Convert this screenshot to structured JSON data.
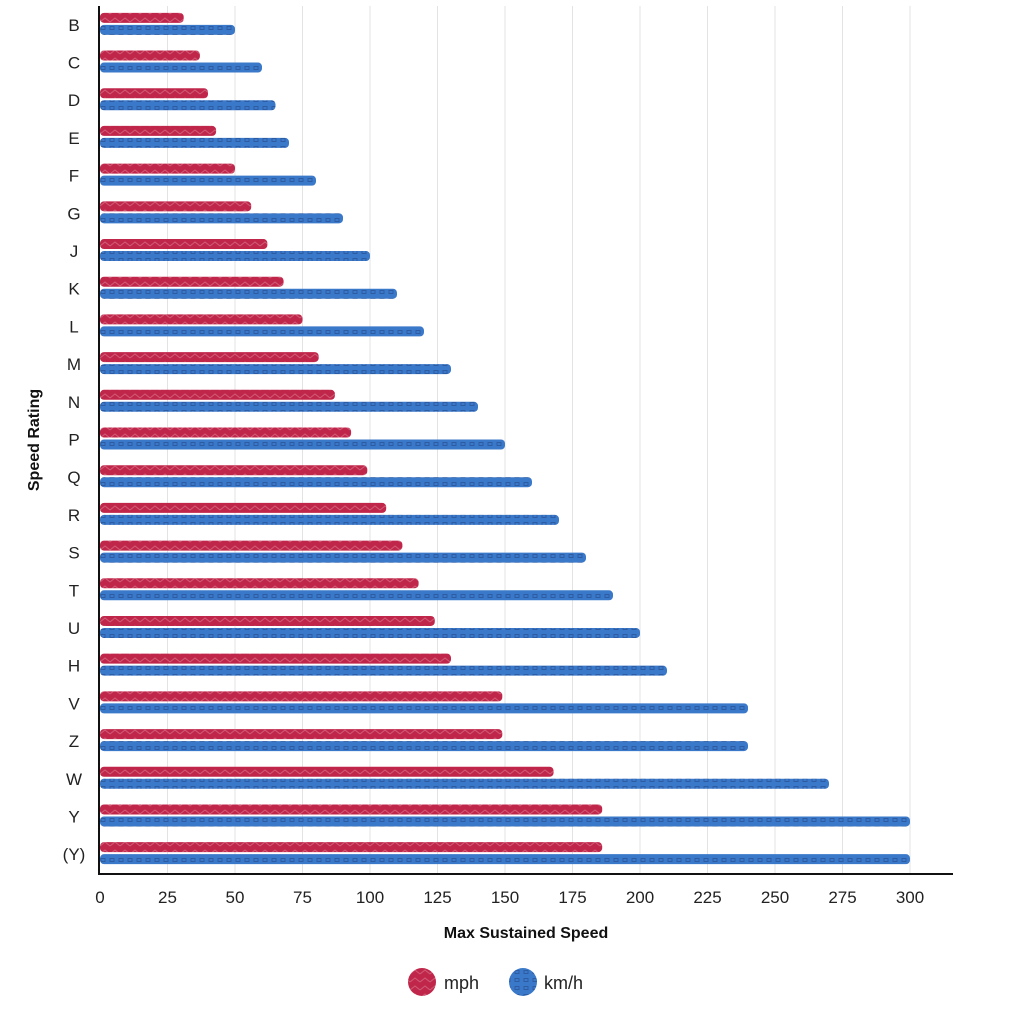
{
  "chart_data": {
    "type": "bar",
    "orientation": "horizontal",
    "title": "",
    "xlabel": "Max Sustained Speed",
    "ylabel": "Speed Rating",
    "xlim": [
      0,
      300
    ],
    "xticks": [
      0,
      25,
      50,
      75,
      100,
      125,
      150,
      175,
      200,
      225,
      250,
      275,
      300
    ],
    "grid": "vertical",
    "legend_position": "bottom",
    "categories": [
      "B",
      "C",
      "D",
      "E",
      "F",
      "G",
      "J",
      "K",
      "L",
      "M",
      "N",
      "P",
      "Q",
      "R",
      "S",
      "T",
      "U",
      "H",
      "V",
      "Z",
      "W",
      "Y",
      "(Y)"
    ],
    "series": [
      {
        "name": "mph",
        "color": "#c0264a",
        "pattern": "wave",
        "values": [
          31,
          37,
          40,
          43,
          50,
          56,
          62,
          68,
          75,
          81,
          87,
          93,
          99,
          106,
          112,
          118,
          124,
          130,
          149,
          149,
          168,
          186,
          186
        ]
      },
      {
        "name": "km/h",
        "color": "#3a78c9",
        "pattern": "squares",
        "values": [
          50,
          60,
          65,
          70,
          80,
          90,
          100,
          110,
          120,
          130,
          140,
          150,
          160,
          170,
          180,
          190,
          200,
          210,
          240,
          240,
          270,
          300,
          300
        ]
      }
    ]
  }
}
